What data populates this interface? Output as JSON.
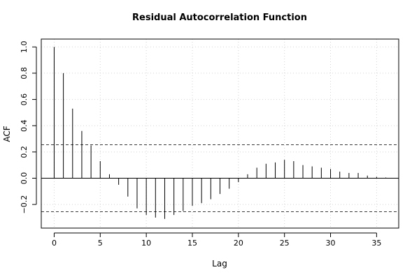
{
  "chart_data": {
    "type": "bar",
    "title": "Residual Autocorrelation Function",
    "xlabel": "Lag",
    "ylabel": "ACF",
    "xlim": [
      -1.4,
      37.4
    ],
    "ylim": [
      -0.38,
      1.06
    ],
    "x_ticks": [
      0,
      5,
      10,
      15,
      20,
      25,
      30,
      35
    ],
    "x_tick_labels": [
      "0",
      "5",
      "10",
      "15",
      "20",
      "25",
      "30",
      "35"
    ],
    "y_ticks": [
      -0.2,
      0.0,
      0.2,
      0.4,
      0.6,
      0.8,
      1.0
    ],
    "y_tick_labels": [
      "−0.2",
      "0.0",
      "0.2",
      "0.4",
      "0.6",
      "0.8",
      "1.0"
    ],
    "grid": true,
    "confidence_bounds": [
      0.255,
      -0.255
    ],
    "series": [
      {
        "lags": [
          0,
          1,
          2,
          3,
          4,
          5,
          6,
          7,
          8,
          9,
          10,
          11,
          12,
          13,
          14,
          15,
          16,
          17,
          18,
          19,
          20,
          21,
          22,
          23,
          24,
          25,
          26,
          27,
          28,
          29,
          30,
          31,
          32,
          33,
          34,
          35,
          36
        ],
        "values": [
          1.0,
          0.8,
          0.53,
          0.36,
          0.25,
          0.13,
          0.03,
          -0.05,
          -0.14,
          -0.23,
          -0.28,
          -0.3,
          -0.31,
          -0.28,
          -0.25,
          -0.21,
          -0.19,
          -0.16,
          -0.12,
          -0.08,
          -0.03,
          0.03,
          0.08,
          0.11,
          0.12,
          0.14,
          0.13,
          0.1,
          0.09,
          0.08,
          0.07,
          0.05,
          0.04,
          0.04,
          0.02,
          0.01,
          0.005
        ]
      }
    ],
    "colors": {
      "bars": "#000000",
      "bounds": "#1f1fff",
      "zero_line": "#000000",
      "grid": "#d3d3d3"
    }
  }
}
